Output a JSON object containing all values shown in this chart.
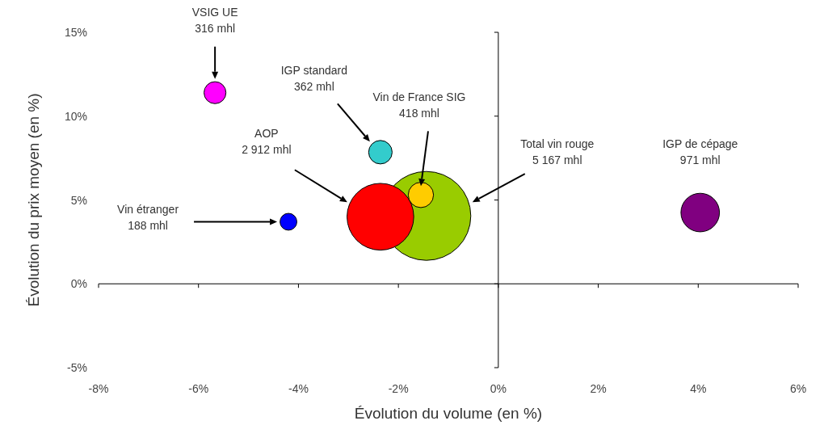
{
  "chart_data": {
    "type": "bubble",
    "xlabel": "Évolution du volume (en %)",
    "ylabel": "Évolution du prix moyen (en %)",
    "xlim": [
      -8,
      6
    ],
    "ylim": [
      -5,
      15
    ],
    "xticks": [
      {
        "value": -8,
        "label": "-8%"
      },
      {
        "value": -6,
        "label": "-6%"
      },
      {
        "value": -4,
        "label": "-4%"
      },
      {
        "value": -2,
        "label": "-2%"
      },
      {
        "value": 0,
        "label": "0%"
      },
      {
        "value": 2,
        "label": "2%"
      },
      {
        "value": 4,
        "label": "4%"
      },
      {
        "value": 6,
        "label": "6%"
      }
    ],
    "yticks": [
      {
        "value": -5,
        "label": "-5%"
      },
      {
        "value": 0,
        "label": "0%"
      },
      {
        "value": 5,
        "label": "5%"
      },
      {
        "value": 10,
        "label": "10%"
      },
      {
        "value": 15,
        "label": "15%"
      }
    ],
    "series": [
      {
        "colors": [
          "#99cc00",
          "#ff0000",
          "#ffcc00",
          "#33cccc",
          "#ff00ff",
          "#800080",
          "#0000ff"
        ],
        "x": [
          -1.44,
          -2.36,
          -1.55,
          -2.36,
          -5.67,
          4.04,
          -4.2
        ],
        "values": [
          4.05,
          4.0,
          5.3,
          7.85,
          11.4,
          4.25,
          3.7
        ],
        "sizes": [
          1,
          0.564,
          0.081,
          0.07,
          0.061,
          0.188,
          0.036
        ]
      }
    ],
    "annotations": [
      "Total vin rouge\n5 167 mhl",
      "AOP\n2 912 mhl",
      "Vin de France SIG\n418 mhl",
      "IGP standard\n362 mhl",
      "VSIG UE\n316 mhl",
      "IGP de cépage\n971 mhl",
      "Vin étranger\n188 mhl"
    ]
  }
}
